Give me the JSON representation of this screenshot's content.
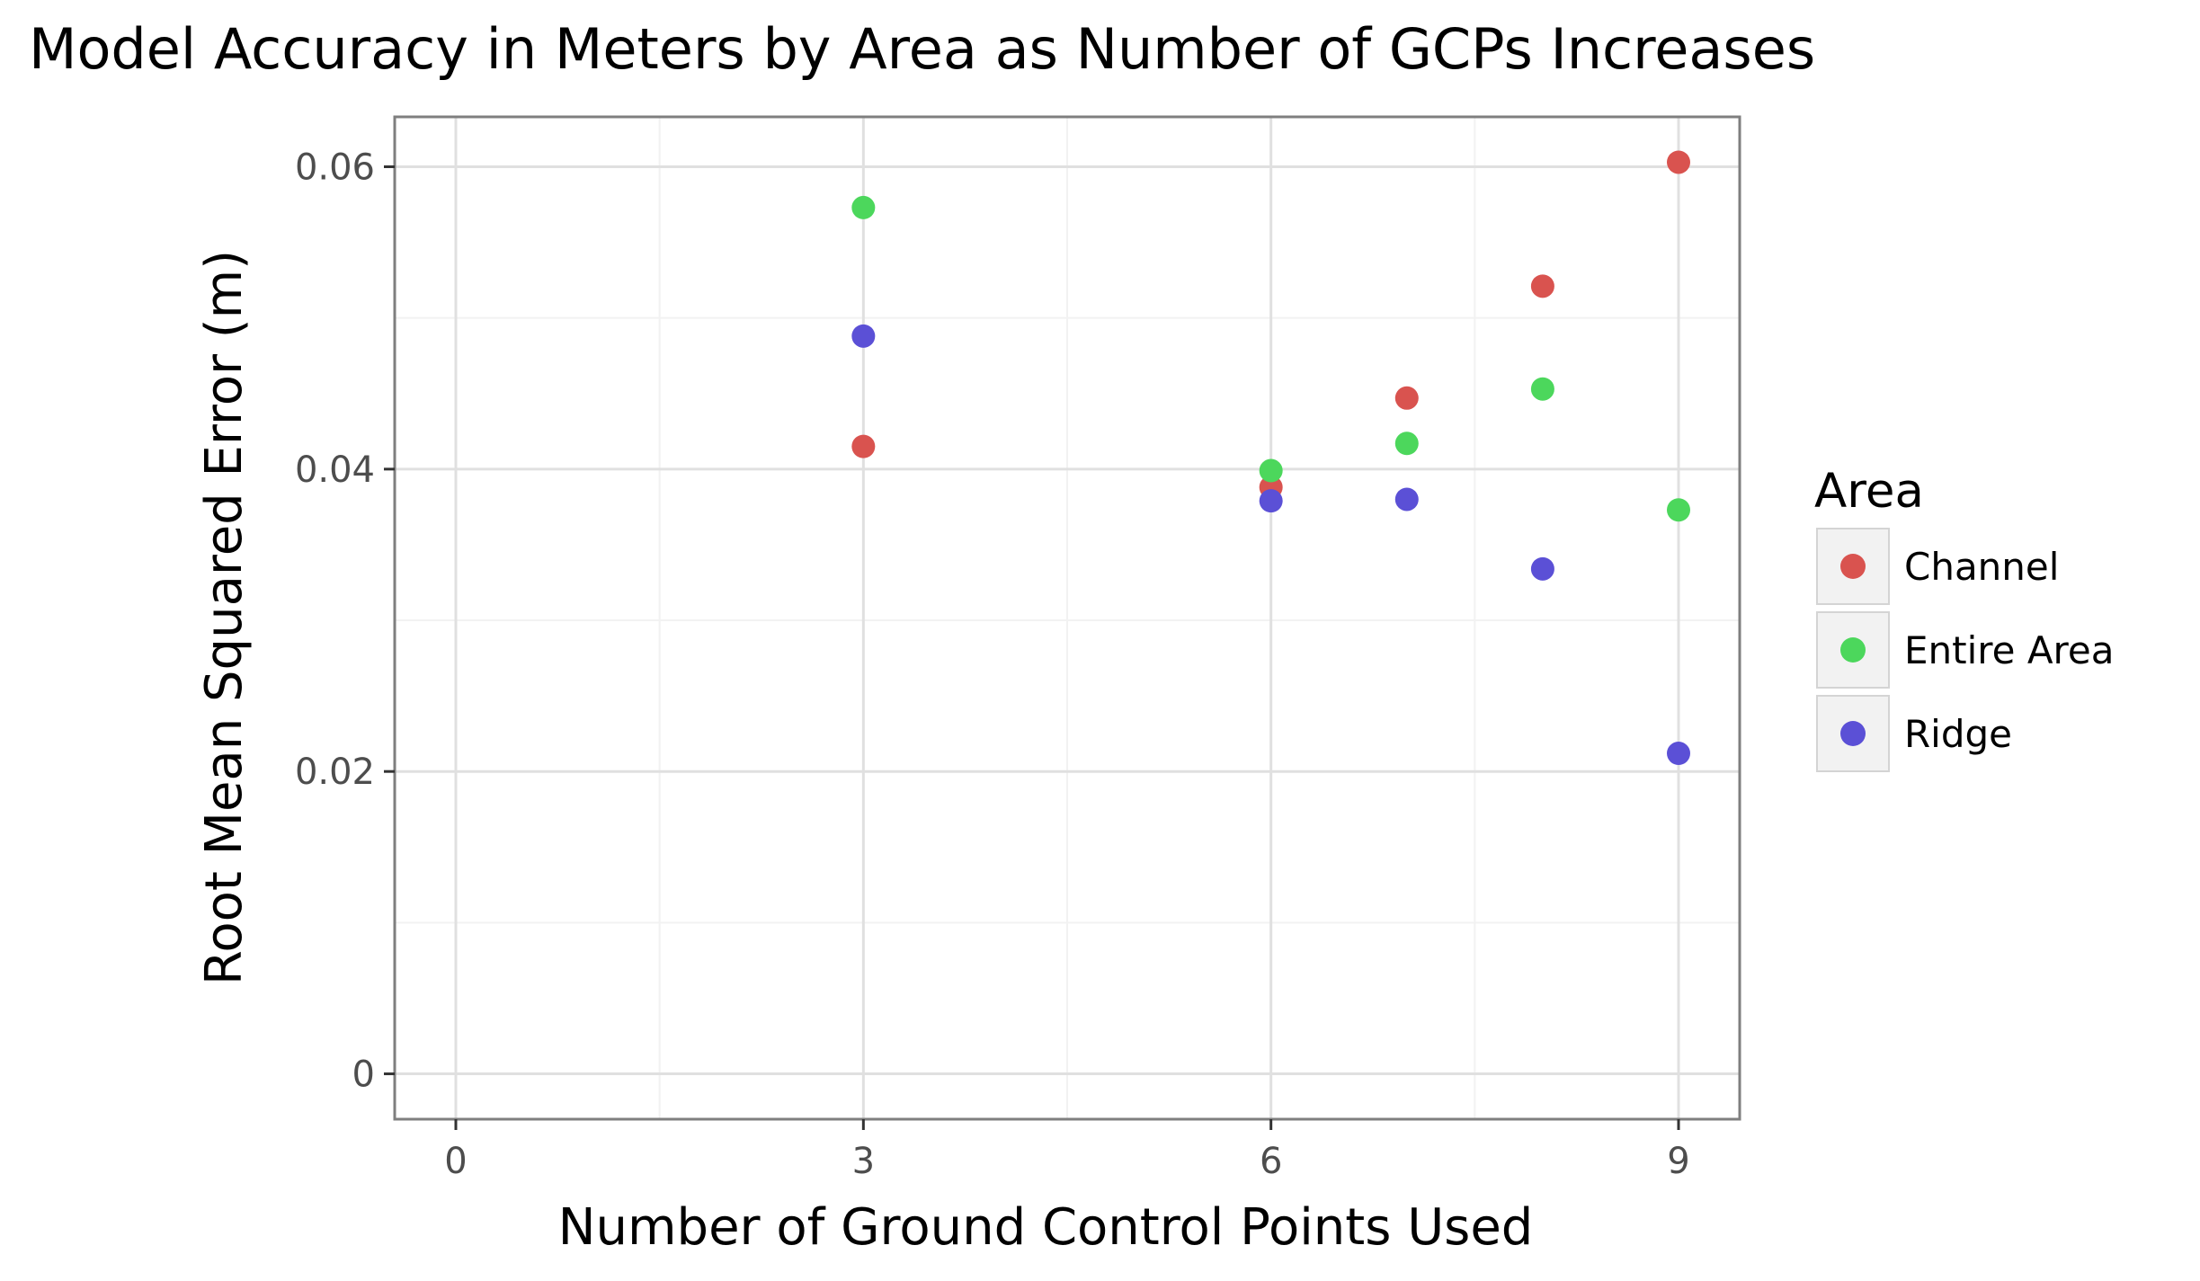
{
  "chart_data": {
    "type": "scatter",
    "title": "Model Accuracy in Meters by Area as Number of GCPs Increases",
    "xlabel": "Number of Ground Control Points Used",
    "ylabel": "Root Mean Squared Error (m)",
    "xlim": [
      -0.45,
      9.45
    ],
    "ylim": [
      -0.003,
      0.0633
    ],
    "x_ticks": [
      0,
      3,
      6,
      9
    ],
    "x_tick_labels": [
      "0",
      "3",
      "6",
      "9"
    ],
    "x_minor_ticks": [
      1.5,
      4.5,
      7.5
    ],
    "y_ticks": [
      0,
      0.02,
      0.04,
      0.06
    ],
    "y_tick_labels": [
      "0",
      "0.02",
      "0.04",
      "0.06"
    ],
    "y_minor_ticks": [
      0.01,
      0.03,
      0.05
    ],
    "grid": true,
    "legend": {
      "title": "Area",
      "placement": "right"
    },
    "series": [
      {
        "name": "Channel",
        "color": "#d9534f",
        "points": [
          [
            3,
            0.0415
          ],
          [
            6,
            0.0388
          ],
          [
            7,
            0.0447
          ],
          [
            8,
            0.0521
          ],
          [
            9,
            0.0603
          ]
        ]
      },
      {
        "name": "Entire Area",
        "color": "#4cd75c",
        "points": [
          [
            3,
            0.0573
          ],
          [
            6,
            0.0399
          ],
          [
            7,
            0.0417
          ],
          [
            8,
            0.0453
          ],
          [
            9,
            0.0373
          ]
        ]
      },
      {
        "name": "Ridge",
        "color": "#5b50d6",
        "points": [
          [
            3,
            0.0488
          ],
          [
            6,
            0.0379
          ],
          [
            7,
            0.038
          ],
          [
            8,
            0.0334
          ],
          [
            9,
            0.0212
          ]
        ]
      }
    ]
  }
}
